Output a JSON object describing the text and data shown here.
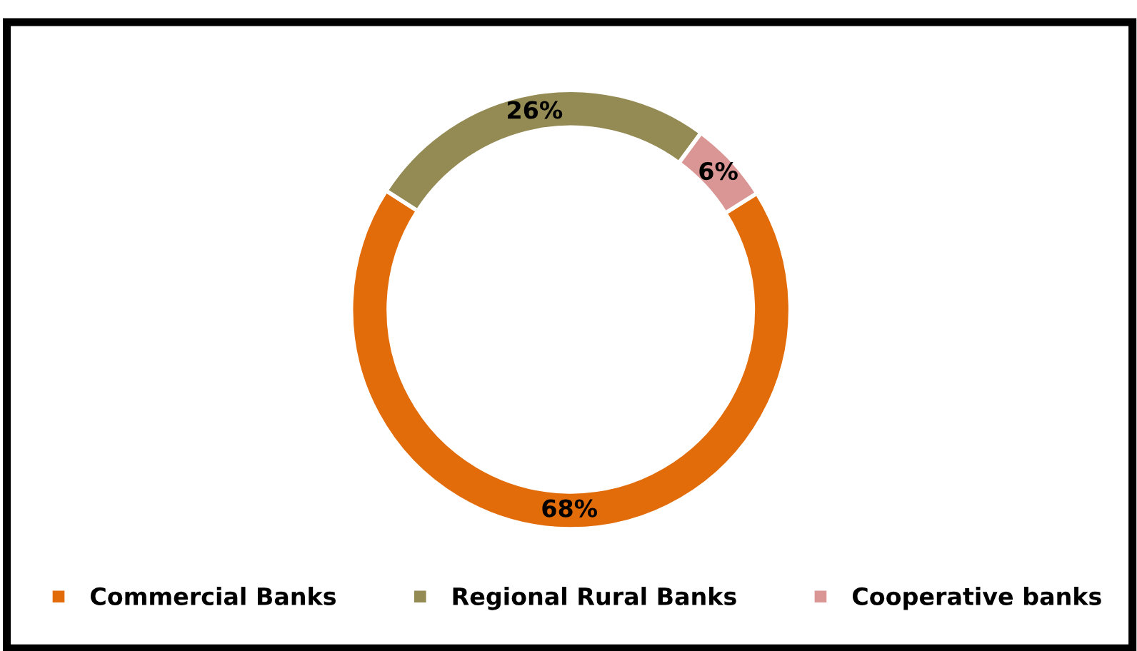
{
  "chart_data": {
    "type": "donut",
    "categories": [
      "Commercial Banks",
      "Regional Rural Banks",
      "Cooperative banks"
    ],
    "values": [
      68,
      26,
      6
    ],
    "colors": [
      "#e36c0a",
      "#948a54",
      "#d99694"
    ],
    "value_labels": [
      "68%",
      "26%",
      "6%"
    ],
    "legend": "bottom"
  }
}
